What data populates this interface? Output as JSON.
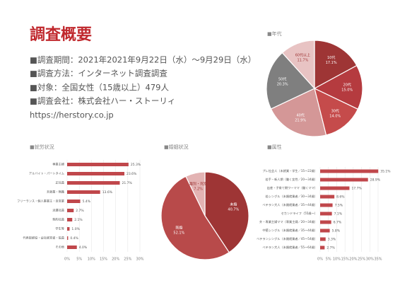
{
  "document": {
    "title": "調査概要",
    "lines": [
      "■調査期間：2021年2021年9月22日（水）〜9月29日（水）",
      "■調査方法：インターネット調査調査",
      "■対象：全国女性（15歳以上）479人",
      "■調査会社：株式会社ハー・ストーリィ",
      "https://herstory.co.jp"
    ]
  },
  "chart_data": [
    {
      "type": "pie",
      "title": "■年代",
      "categories": [
        "10代",
        "20代",
        "30代",
        "40代",
        "50代",
        "60代以上"
      ],
      "values": [
        17.1,
        15.0,
        14.0,
        21.9,
        20.3,
        11.7
      ],
      "value_labels": [
        "17.1%",
        "15.0%",
        "14.0%",
        "21.9%",
        "20.3%",
        "11.7%"
      ],
      "colors": [
        "#9e3535",
        "#b53b3f",
        "#c54b4b",
        "#d49797",
        "#7f7f7f",
        "#e8c3c3"
      ]
    },
    {
      "type": "bar",
      "title": "■就労状況",
      "orientation": "horizontal",
      "color": "#c0474b",
      "grid": true,
      "categories": [
        "専業主婦",
        "アルバイト・パートタイム",
        "正社員",
        "未就業・無職",
        "フリーランス・個人事業主・自営業",
        "派遣社員",
        "契約社員",
        "学生等",
        "代表取締役・会社経営者・役員",
        "その他"
      ],
      "values": [
        25.3,
        23.6,
        21.7,
        13.6,
        5.4,
        2.7,
        2.1,
        1.0,
        0.4,
        4.0
      ],
      "value_labels": [
        "25.3%",
        "23.6%",
        "21.7%",
        "13.6%",
        "5.4%",
        "2.7%",
        "2.1%",
        "1.0%",
        "0.4%",
        "4.0%"
      ],
      "xlim": [
        0,
        30
      ],
      "xticks": [
        {
          "value": 0,
          "label": "0%"
        },
        {
          "value": 5,
          "label": "5%"
        },
        {
          "value": 10,
          "label": "10%"
        },
        {
          "value": 15,
          "label": "15%"
        },
        {
          "value": 20,
          "label": "20%"
        },
        {
          "value": 25,
          "label": "25%"
        },
        {
          "value": 30,
          "label": "30%"
        }
      ]
    },
    {
      "type": "pie",
      "title": "■婚姻状況",
      "categories": [
        "未婚",
        "既婚",
        "離別・死別"
      ],
      "values": [
        40.7,
        52.1,
        7.2
      ],
      "value_labels": [
        "40.7%",
        "52.1%",
        "7.2%"
      ],
      "colors": [
        "#9e3535",
        "#b84a4a",
        "#e3b3b3"
      ]
    },
    {
      "type": "bar",
      "title": "■属性",
      "orientation": "horizontal",
      "color": "#c0474b",
      "grid": true,
      "categories": [
        "プレ社会人（未就業・学生／15〜22歳）",
        "若手・新人期（働く女性／20〜34歳）",
        "出産・子育て期ワーママ（働くママ）",
        "若シングル（未婚就業者／30〜34歳）",
        "ベテラン大人（未婚就業者／35〜44歳）",
        "セカンドライフ（55歳〜）",
        "外・専業主婦ママ（専業主婦／20〜34歳）",
        "中堅シングル（未婚就業者／35〜44歳）",
        "ベテランシングル（未婚就業者／45〜54歳）",
        "ベテラン大人（未婚就業者／55〜64歳）"
      ],
      "values": [
        35.1,
        28.9,
        17.7,
        8.6,
        7.5,
        7.1,
        6.7,
        5.8,
        3.3,
        2.7
      ],
      "value_labels": [
        "35.1%",
        "28.9%",
        "17.7%",
        "8.6%",
        "7.5%",
        "7.1%",
        "6.7%",
        "5.8%",
        "3.3%",
        "2.7%"
      ],
      "xlim": [
        0,
        35
      ],
      "xticks": [
        {
          "value": 0,
          "label": "0%"
        },
        {
          "value": 5,
          "label": "5%"
        },
        {
          "value": 10,
          "label": "10%"
        },
        {
          "value": 15,
          "label": "15%"
        },
        {
          "value": 20,
          "label": "20%"
        },
        {
          "value": 25,
          "label": "25%"
        },
        {
          "value": 30,
          "label": "30%"
        },
        {
          "value": 35,
          "label": "35%"
        }
      ]
    }
  ]
}
